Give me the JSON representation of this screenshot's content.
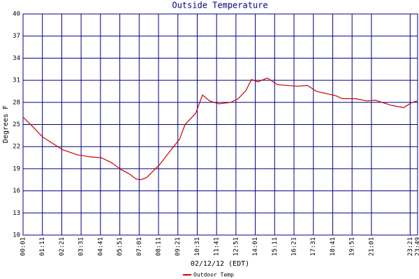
{
  "chart_data": {
    "type": "line",
    "title": "Outside Temperature",
    "y_label": "Degrees F",
    "x_label": "02/12/12 (EDT)",
    "x": [
      1,
      31,
      72,
      143,
      196,
      246,
      284,
      322,
      355,
      385,
      410,
      426,
      448,
      496,
      537,
      567,
      587,
      625,
      650,
      676,
      709,
      752,
      779,
      807,
      827,
      850,
      885,
      921,
      992,
      1030,
      1062,
      1133,
      1156,
      1204,
      1244,
      1275,
      1333,
      1378,
      1408,
      1428
    ],
    "series": [
      {
        "name": "Outdoor Temp",
        "color": "#cc0000",
        "values": [
          26.0,
          24.9,
          23.3,
          21.6,
          20.9,
          20.6,
          20.5,
          19.8,
          18.9,
          18.3,
          17.6,
          17.5,
          17.8,
          19.6,
          21.6,
          23.0,
          25.0,
          26.5,
          29.0,
          28.2,
          27.8,
          28.0,
          28.5,
          29.6,
          31.1,
          30.8,
          31.3,
          30.4,
          30.2,
          30.3,
          29.5,
          28.9,
          28.5,
          28.5,
          28.2,
          28.3,
          27.6,
          27.3,
          28.0,
          28.2
        ]
      }
    ],
    "xlim": [
      1,
      1428
    ],
    "xticks": [
      {
        "value": 1,
        "label": "00:01"
      },
      {
        "value": 71,
        "label": "01:11"
      },
      {
        "value": 141,
        "label": "02:21"
      },
      {
        "value": 211,
        "label": "03:31"
      },
      {
        "value": 281,
        "label": "04:41"
      },
      {
        "value": 351,
        "label": "05:51"
      },
      {
        "value": 421,
        "label": "07:01"
      },
      {
        "value": 491,
        "label": "08:11"
      },
      {
        "value": 561,
        "label": "09:21"
      },
      {
        "value": 631,
        "label": "10:31"
      },
      {
        "value": 701,
        "label": "11:41"
      },
      {
        "value": 771,
        "label": "12:51"
      },
      {
        "value": 841,
        "label": "14:01"
      },
      {
        "value": 911,
        "label": "15:11"
      },
      {
        "value": 981,
        "label": "16:21"
      },
      {
        "value": 1051,
        "label": "17:31"
      },
      {
        "value": 1121,
        "label": "18:41"
      },
      {
        "value": 1191,
        "label": "19:51"
      },
      {
        "value": 1261,
        "label": "21:01"
      },
      {
        "value": 1401,
        "label": "23:21"
      },
      {
        "value": 1428,
        "label": "23:49"
      }
    ],
    "ylim": [
      10,
      40
    ],
    "yticks": [
      10,
      13,
      16,
      19,
      22,
      25,
      28,
      31,
      34,
      37,
      40
    ],
    "grid": true
  }
}
